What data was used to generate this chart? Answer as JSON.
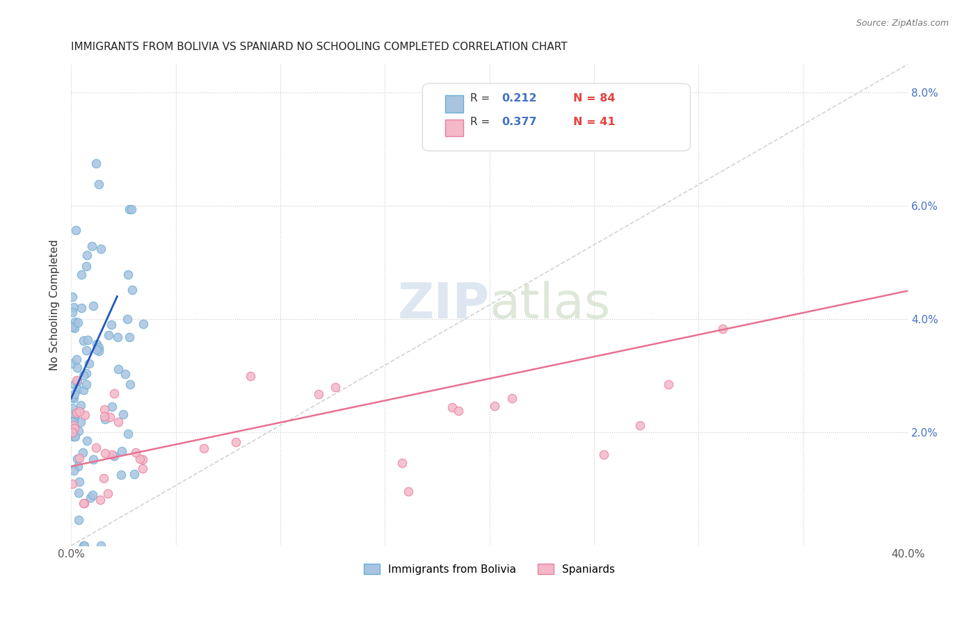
{
  "title": "IMMIGRANTS FROM BOLIVIA VS SPANIARD NO SCHOOLING COMPLETED CORRELATION CHART",
  "source": "Source: ZipAtlas.com",
  "ylabel": "No Schooling Completed",
  "xlim": [
    0.0,
    0.4
  ],
  "ylim": [
    0.0,
    0.085
  ],
  "bolivia_color": "#a8c4e0",
  "bolivia_edge": "#6aaed6",
  "spaniard_color": "#f4b8c8",
  "spaniard_edge": "#e87fa0",
  "bolivia_R": 0.212,
  "bolivia_N": 84,
  "spaniard_R": 0.377,
  "spaniard_N": 41,
  "legend_R_color": "#4472c4",
  "legend_N_color": "#e84040",
  "bolivia_line_color": "#2255bb",
  "spaniard_line_color": "#e87090",
  "diag_line_color": "#c0c0c0",
  "watermark_zip_color": "#c8d8e8",
  "watermark_atlas_color": "#c8d8c0"
}
